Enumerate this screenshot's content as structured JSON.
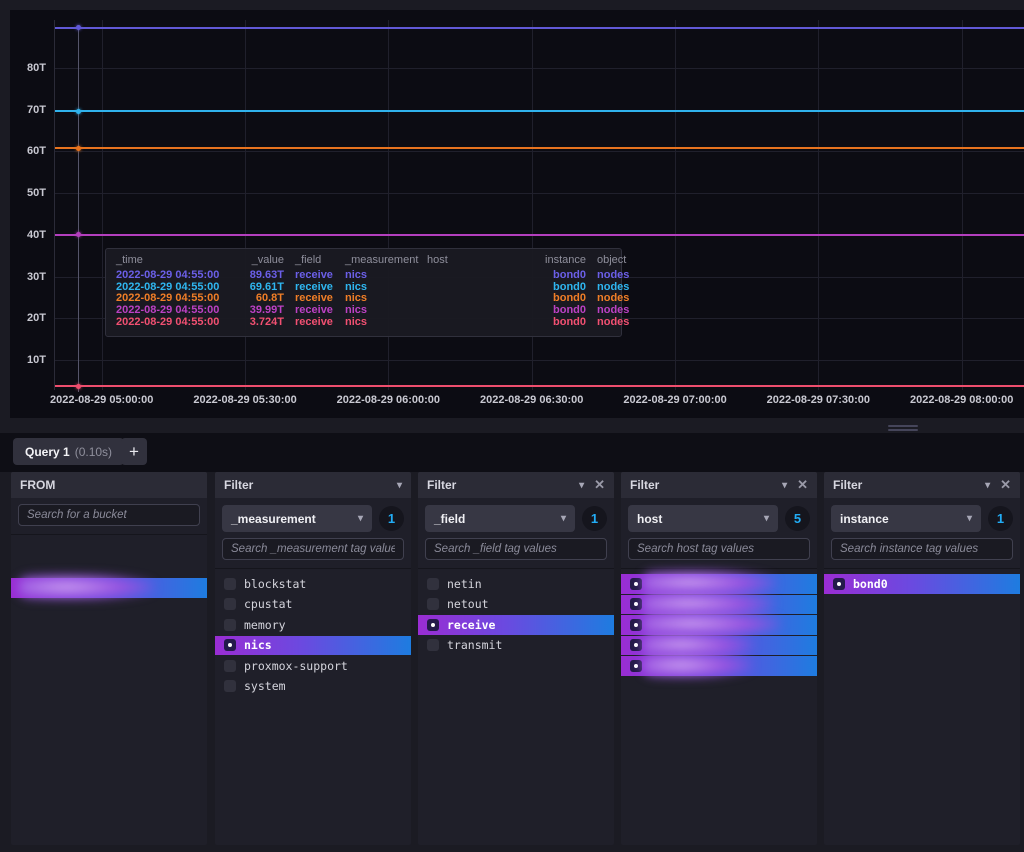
{
  "chart_data": {
    "type": "line",
    "title": "",
    "xlabel": "",
    "ylabel": "",
    "ylim": [
      0,
      92
    ],
    "y_unit": "T",
    "grid": true,
    "y_ticks": [
      {
        "label": "80T",
        "value": 80
      },
      {
        "label": "70T",
        "value": 70
      },
      {
        "label": "60T",
        "value": 60
      },
      {
        "label": "50T",
        "value": 50
      },
      {
        "label": "40T",
        "value": 40
      },
      {
        "label": "30T",
        "value": 30
      },
      {
        "label": "20T",
        "value": 20
      },
      {
        "label": "10T",
        "value": 10
      }
    ],
    "x_ticks": [
      "2022-08-29 05:00:00",
      "2022-08-29 05:30:00",
      "2022-08-29 06:00:00",
      "2022-08-29 06:30:00",
      "2022-08-29 07:00:00",
      "2022-08-29 07:30:00",
      "2022-08-29 08:00:00"
    ],
    "hover_time": "2022-08-29 04:55:00",
    "series": [
      {
        "value": 89.63,
        "value_label": "89.63T",
        "color": "#6159d6"
      },
      {
        "value": 69.61,
        "value_label": "69.61T",
        "color": "#30b2ec"
      },
      {
        "value": 60.8,
        "value_label": "60.8T",
        "color": "#e8741f"
      },
      {
        "value": 39.99,
        "value_label": "39.99T",
        "color": "#b43fbe"
      },
      {
        "value": 3.724,
        "value_label": "3.724T",
        "color": "#ef4e6e"
      }
    ]
  },
  "tooltip": {
    "headers": [
      "_time",
      "_value",
      "_field",
      "_measurement",
      "host",
      "instance",
      "object"
    ],
    "rows": [
      {
        "time": "2022-08-29 04:55:00",
        "value": "89.63T",
        "field": "receive",
        "measurement": "nics",
        "host": "",
        "instance": "bond0",
        "object": "nodes",
        "color": "#6b5fe8"
      },
      {
        "time": "2022-08-29 04:55:00",
        "value": "69.61T",
        "field": "receive",
        "measurement": "nics",
        "host": "",
        "instance": "bond0",
        "object": "nodes",
        "color": "#2fb6f0"
      },
      {
        "time": "2022-08-29 04:55:00",
        "value": "60.8T",
        "field": "receive",
        "measurement": "nics",
        "host": "",
        "instance": "bond0",
        "object": "nodes",
        "color": "#f07e27"
      },
      {
        "time": "2022-08-29 04:55:00",
        "value": "39.99T",
        "field": "receive",
        "measurement": "nics",
        "host": "",
        "instance": "bond0",
        "object": "nodes",
        "color": "#bc41c4"
      },
      {
        "time": "2022-08-29 04:55:00",
        "value": "3.724T",
        "field": "receive",
        "measurement": "nics",
        "host": "",
        "instance": "bond0",
        "object": "nodes",
        "color": "#f25072"
      }
    ]
  },
  "query_tabs": {
    "active_label": "Query 1",
    "duration": "(0.10s)",
    "add_label": "+"
  },
  "builder": {
    "from": {
      "title": "FROM",
      "search_placeholder": "Search for a bucket",
      "buckets": [
        {
          "redacted": true,
          "selected": true
        }
      ]
    },
    "filters": [
      {
        "title": "Filter",
        "closable": false,
        "key": "_measurement",
        "count": "1",
        "search_placeholder": "Search _measurement tag values",
        "items": [
          {
            "label": "blockstat",
            "selected": false
          },
          {
            "label": "cpustat",
            "selected": false
          },
          {
            "label": "memory",
            "selected": false
          },
          {
            "label": "nics",
            "selected": true
          },
          {
            "label": "proxmox-support",
            "selected": false
          },
          {
            "label": "system",
            "selected": false
          }
        ]
      },
      {
        "title": "Filter",
        "closable": true,
        "key": "_field",
        "count": "1",
        "search_placeholder": "Search _field tag values",
        "items": [
          {
            "label": "netin",
            "selected": false
          },
          {
            "label": "netout",
            "selected": false
          },
          {
            "label": "receive",
            "selected": true
          },
          {
            "label": "transmit",
            "selected": false
          }
        ]
      },
      {
        "title": "Filter",
        "closable": true,
        "key": "host",
        "count": "5",
        "search_placeholder": "Search host tag values",
        "items": [
          {
            "redacted": true,
            "selected": true
          },
          {
            "redacted": true,
            "selected": true
          },
          {
            "redacted": true,
            "selected": true
          },
          {
            "redacted": true,
            "selected": true
          },
          {
            "redacted": true,
            "selected": true
          }
        ]
      },
      {
        "title": "Filter",
        "closable": true,
        "key": "instance",
        "count": "1",
        "search_placeholder": "Search instance tag values",
        "items": [
          {
            "label": "bond0",
            "selected": true
          }
        ]
      }
    ]
  },
  "icons": {
    "chevron_down": "▾",
    "close": "✕"
  }
}
